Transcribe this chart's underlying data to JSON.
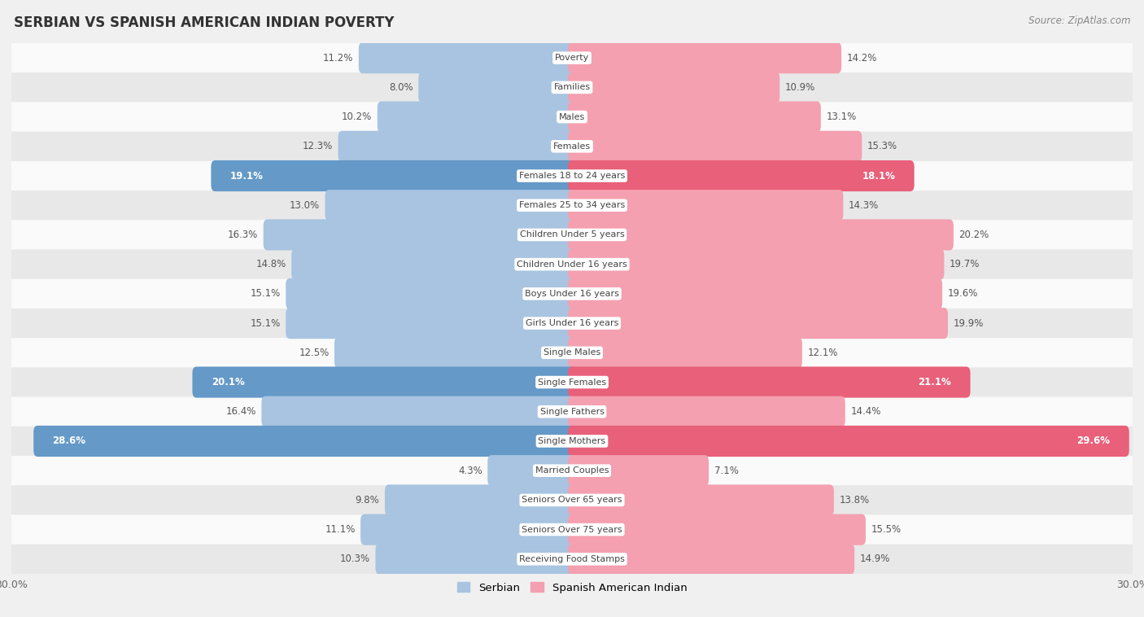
{
  "title": "SERBIAN VS SPANISH AMERICAN INDIAN POVERTY",
  "source": "Source: ZipAtlas.com",
  "categories": [
    "Poverty",
    "Families",
    "Males",
    "Females",
    "Females 18 to 24 years",
    "Females 25 to 34 years",
    "Children Under 5 years",
    "Children Under 16 years",
    "Boys Under 16 years",
    "Girls Under 16 years",
    "Single Males",
    "Single Females",
    "Single Fathers",
    "Single Mothers",
    "Married Couples",
    "Seniors Over 65 years",
    "Seniors Over 75 years",
    "Receiving Food Stamps"
  ],
  "serbian": [
    11.2,
    8.0,
    10.2,
    12.3,
    19.1,
    13.0,
    16.3,
    14.8,
    15.1,
    15.1,
    12.5,
    20.1,
    16.4,
    28.6,
    4.3,
    9.8,
    11.1,
    10.3
  ],
  "spanish_american_indian": [
    14.2,
    10.9,
    13.1,
    15.3,
    18.1,
    14.3,
    20.2,
    19.7,
    19.6,
    19.9,
    12.1,
    21.1,
    14.4,
    29.6,
    7.1,
    13.8,
    15.5,
    14.9
  ],
  "serbian_color": "#a8c4e0",
  "spanish_color": "#f4a0b0",
  "serbian_highlight_color": "#6499c8",
  "spanish_highlight_color": "#e8607a",
  "highlight_rows": [
    4,
    11,
    13
  ],
  "xlim": 30.0,
  "background_color": "#f0f0f0",
  "row_bg_light": "#fafafa",
  "row_bg_dark": "#e8e8e8",
  "label_box_color": "#ffffff",
  "legend_serbian": "Serbian",
  "legend_spanish": "Spanish American Indian"
}
